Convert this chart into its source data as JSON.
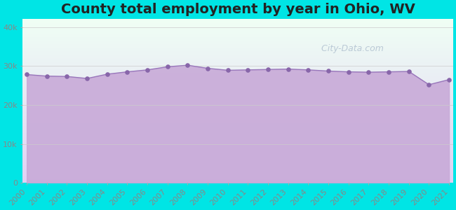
{
  "title": "County total employment by year in Ohio, WV",
  "title_fontsize": 14,
  "background_color": "#00e5e5",
  "fill_color": "#c8aad8",
  "fill_alpha": 0.9,
  "line_color": "#9977bb",
  "dot_color": "#8866aa",
  "dot_size": 14,
  "watermark": "  City-Data.com",
  "watermark_color": "#aabbcc",
  "years": [
    2000,
    2001,
    2002,
    2003,
    2004,
    2005,
    2006,
    2007,
    2008,
    2009,
    2010,
    2011,
    2012,
    2013,
    2014,
    2015,
    2016,
    2017,
    2018,
    2019,
    2020,
    2021
  ],
  "values": [
    27800,
    27400,
    27300,
    26800,
    27900,
    28500,
    29000,
    29800,
    30200,
    29400,
    28900,
    29000,
    29100,
    29200,
    29000,
    28700,
    28500,
    28400,
    28500,
    28600,
    25200,
    26500
  ],
  "ylim": [
    0,
    42000
  ],
  "yticks": [
    0,
    10000,
    20000,
    30000,
    40000
  ],
  "ytick_labels": [
    "0",
    "10k",
    "20k",
    "30k",
    "40k"
  ],
  "tick_color": "#888888",
  "tick_fontsize": 8
}
